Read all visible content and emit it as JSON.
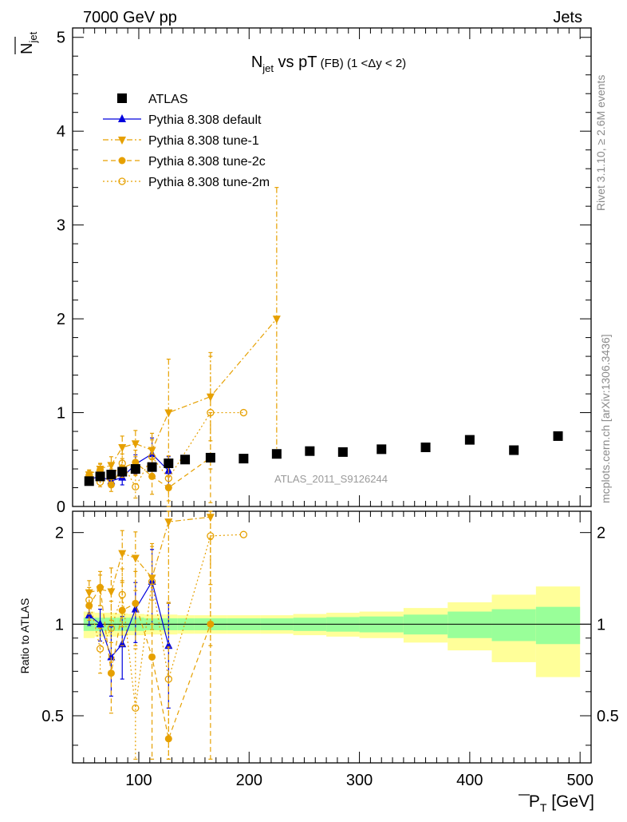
{
  "header": {
    "left": "7000 GeV pp",
    "right": "Jets"
  },
  "side_text": {
    "rivet": "Rivet 3.1.10, ≥ 2.6M events",
    "mcplots": "mcplots.cern.ch [arXiv:1306.3436]"
  },
  "watermark": "ATLAS_2011_S9126244",
  "colors": {
    "atlas": "#000000",
    "default": "#0000dd",
    "tunes": "#e6a000",
    "band_inner": "#99ff99",
    "band_outer": "#ffff99"
  },
  "chart_data": [
    {
      "type": "scatter",
      "title": {
        "main": "N",
        "sub": "jet",
        "rest": " vs pT",
        "small": " (FB)",
        "range": " (1 <Δy < 2)"
      },
      "ylabel": {
        "main": "N",
        "sub": "jet"
      },
      "xlim": [
        40,
        510
      ],
      "ylim": [
        0,
        5.1
      ],
      "yticks": [
        "0",
        "1",
        "2",
        "3",
        "4",
        "5"
      ],
      "legend_position": "top-left",
      "series": [
        {
          "name": "ATLAS",
          "marker": "square",
          "x": [
            55,
            65,
            75,
            85,
            97,
            112,
            127,
            142,
            165,
            195,
            225,
            255,
            285,
            320,
            360,
            400,
            440,
            480
          ],
          "y": [
            0.27,
            0.32,
            0.34,
            0.37,
            0.4,
            0.42,
            0.46,
            0.5,
            0.52,
            0.51,
            0.56,
            0.59,
            0.58,
            0.61,
            0.63,
            0.71,
            0.6,
            0.75
          ]
        },
        {
          "name": "Pythia 8.308 default",
          "marker": "triangle-up",
          "line": "solid",
          "x": [
            55,
            65,
            75,
            85,
            97,
            112,
            127
          ],
          "y": [
            0.29,
            0.32,
            0.27,
            0.31,
            0.45,
            0.56,
            0.38
          ],
          "err": [
            0.03,
            0.04,
            0.06,
            0.08,
            0.1,
            0.17,
            0.15
          ]
        },
        {
          "name": "Pythia 8.308 tune-1",
          "marker": "triangle-down",
          "line": "dashdot",
          "x": [
            55,
            65,
            75,
            85,
            97,
            112,
            127,
            165,
            225
          ],
          "y": [
            0.34,
            0.4,
            0.44,
            0.63,
            0.67,
            0.6,
            1.0,
            1.17,
            2.0
          ],
          "err": [
            0.05,
            0.06,
            0.09,
            0.12,
            0.14,
            0.18,
            0.57,
            0.47,
            1.4
          ]
        },
        {
          "name": "Pythia 8.308 tune-2c",
          "marker": "circle",
          "line": "dashed",
          "x": [
            55,
            65,
            75,
            85,
            97,
            112,
            127,
            165
          ],
          "y": [
            0.31,
            0.39,
            0.23,
            0.41,
            0.47,
            0.32,
            0.2,
            0.52
          ],
          "err": [
            0.05,
            0.06,
            0.07,
            0.1,
            0.13,
            0.19,
            0.22,
            0.48
          ]
        },
        {
          "name": "Pythia 8.308 tune-2m",
          "marker": "circle-open",
          "line": "dotted",
          "x": [
            55,
            65,
            75,
            85,
            97,
            112,
            127,
            165,
            195
          ],
          "y": [
            0.33,
            0.26,
            0.32,
            0.46,
            0.21,
            0.53,
            0.3,
            1.0,
            1.0
          ],
          "err": [
            0.05,
            0.05,
            0.08,
            0.1,
            0.12,
            0.18,
            0.24,
            0.6,
            0.0
          ]
        }
      ]
    },
    {
      "type": "scatter",
      "ylabel": "Ratio to ATLAS",
      "xlabel": {
        "main": "P",
        "sub": "T",
        "unit": " [GeV]"
      },
      "xlim": [
        40,
        510
      ],
      "ylim": [
        0.35,
        2.35
      ],
      "xticks": [
        "100",
        "200",
        "300",
        "400",
        "500"
      ],
      "yticks": [
        "0.5",
        "1",
        "2"
      ],
      "bands": {
        "edges": [
          50,
          60,
          70,
          80,
          90,
          105,
          120,
          135,
          150,
          180,
          210,
          240,
          270,
          300,
          340,
          380,
          420,
          460,
          500
        ],
        "inner": [
          0.05,
          0.05,
          0.05,
          0.05,
          0.05,
          0.045,
          0.045,
          0.045,
          0.045,
          0.045,
          0.045,
          0.05,
          0.055,
          0.06,
          0.075,
          0.1,
          0.12,
          0.14
        ],
        "outer": [
          0.1,
          0.09,
          0.09,
          0.085,
          0.08,
          0.075,
          0.075,
          0.07,
          0.07,
          0.07,
          0.07,
          0.08,
          0.09,
          0.1,
          0.13,
          0.18,
          0.25,
          0.33
        ]
      },
      "series": [
        {
          "name": "Pythia 8.308 default",
          "x": [
            55,
            65,
            75,
            85,
            97,
            112,
            127
          ],
          "y": [
            1.07,
            1.0,
            0.78,
            0.86,
            1.12,
            1.38,
            0.85
          ],
          "err": [
            0.08,
            0.12,
            0.2,
            0.2,
            0.25,
            0.38,
            0.32
          ]
        },
        {
          "name": "Pythia 8.308 tune-1",
          "x": [
            55,
            65,
            75,
            85,
            97,
            112,
            127,
            165
          ],
          "y": [
            1.27,
            1.3,
            1.28,
            1.71,
            1.65,
            1.42,
            2.17,
            2.25
          ],
          "err": [
            0.12,
            0.15,
            0.25,
            0.32,
            0.36,
            0.42,
            1.0,
            0.9
          ]
        },
        {
          "name": "Pythia 8.308 tune-2c",
          "x": [
            55,
            65,
            75,
            85,
            97,
            112,
            127,
            165
          ],
          "y": [
            1.15,
            1.32,
            0.69,
            1.11,
            1.17,
            0.78,
            0.42,
            1.0
          ],
          "err": [
            0.12,
            0.17,
            0.18,
            0.26,
            0.32,
            0.42,
            0.42,
            0.9
          ]
        },
        {
          "name": "Pythia 8.308 tune-2m",
          "x": [
            55,
            65,
            75,
            85,
            97,
            112,
            127,
            165,
            195
          ],
          "y": [
            1.2,
            0.83,
            0.97,
            1.25,
            0.53,
            1.38,
            0.66,
            1.95,
            1.97
          ],
          "err": [
            0.12,
            0.14,
            0.22,
            0.27,
            0.3,
            0.42,
            0.52,
            1.1,
            0.0
          ]
        }
      ]
    }
  ]
}
